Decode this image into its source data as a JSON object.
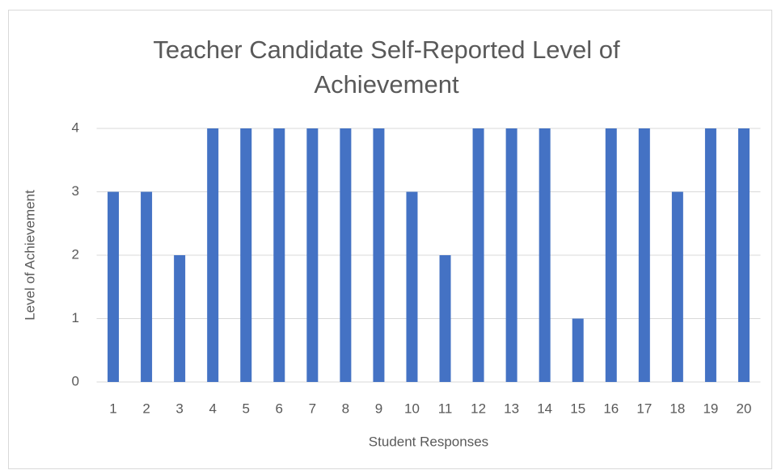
{
  "chart_data": {
    "type": "bar",
    "title": "Teacher Candidate Self-Reported Level of Achievement",
    "x_label": "Student Responses",
    "y_label": "Level of Achievement",
    "categories": [
      "1",
      "2",
      "3",
      "4",
      "5",
      "6",
      "7",
      "8",
      "9",
      "10",
      "11",
      "12",
      "13",
      "14",
      "15",
      "16",
      "17",
      "18",
      "19",
      "20"
    ],
    "values": [
      3,
      3,
      2,
      4,
      4,
      4,
      4,
      4,
      4,
      3,
      2,
      4,
      4,
      4,
      1,
      4,
      4,
      3,
      4,
      4
    ],
    "color": "#4472c4",
    "ylim": [
      0,
      4
    ],
    "yticks": [
      0,
      1,
      2,
      3,
      4
    ],
    "grid": true
  }
}
